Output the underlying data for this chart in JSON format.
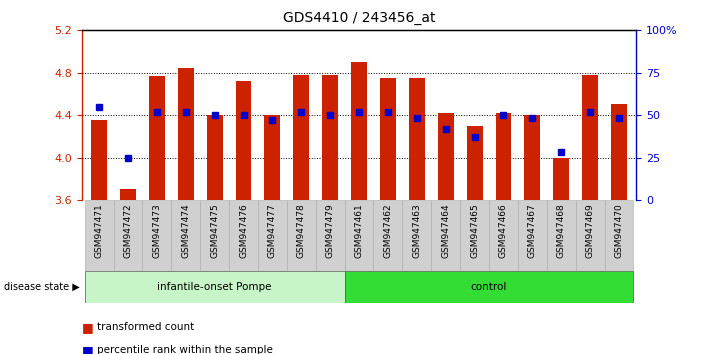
{
  "title": "GDS4410 / 243456_at",
  "samples": [
    "GSM947471",
    "GSM947472",
    "GSM947473",
    "GSM947474",
    "GSM947475",
    "GSM947476",
    "GSM947477",
    "GSM947478",
    "GSM947479",
    "GSM947461",
    "GSM947462",
    "GSM947463",
    "GSM947464",
    "GSM947465",
    "GSM947466",
    "GSM947467",
    "GSM947468",
    "GSM947469",
    "GSM947470"
  ],
  "red_values": [
    4.35,
    3.7,
    4.77,
    4.84,
    4.4,
    4.72,
    4.4,
    4.78,
    4.78,
    4.9,
    4.75,
    4.75,
    4.42,
    4.3,
    4.42,
    4.4,
    4.0,
    4.78,
    4.5
  ],
  "blue_pct": [
    55,
    25,
    52,
    52,
    50,
    50,
    47,
    52,
    50,
    52,
    52,
    48,
    42,
    37,
    50,
    48,
    28,
    52,
    48
  ],
  "group1_count": 9,
  "group1_label": "infantile-onset Pompe",
  "group2_label": "control",
  "group1_color": "#c8f5c8",
  "group2_color": "#33dd33",
  "bar_color": "#cc2200",
  "blue_color": "#0000cc",
  "y_min": 3.6,
  "y_max": 5.2,
  "y_ticks": [
    3.6,
    4.0,
    4.4,
    4.8,
    5.2
  ],
  "right_y_ticks": [
    0,
    25,
    50,
    75,
    100
  ],
  "right_y_labels": [
    "0",
    "25",
    "50",
    "75",
    "100%"
  ],
  "disease_state_label": "disease state",
  "legend1": "transformed count",
  "legend2": "percentile rank within the sample",
  "bar_width": 0.55,
  "xtick_bg": "#d0d0d0"
}
